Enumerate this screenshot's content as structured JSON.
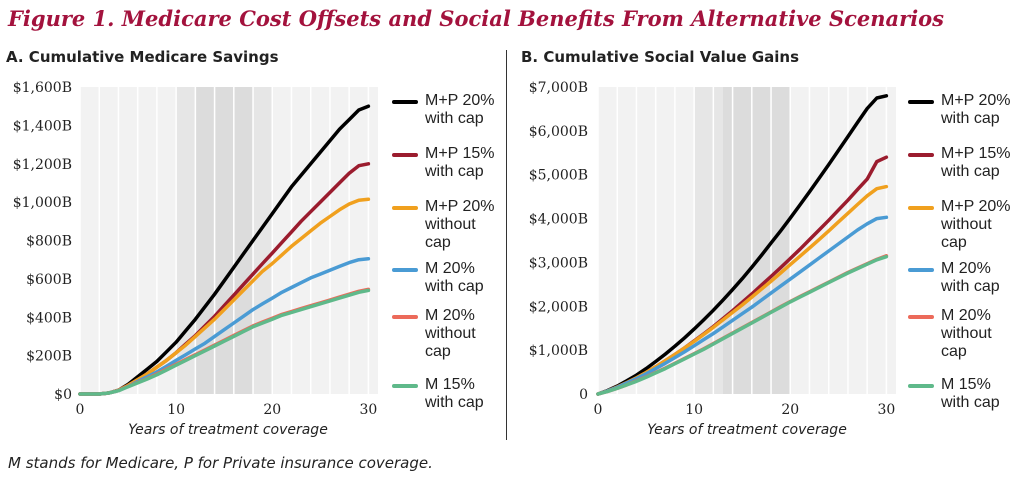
{
  "figure_title": "Figure 1. Medicare Cost Offsets and Social Benefits From Alternative Scenarios",
  "footnote": "M stands for Medicare, P for Private insurance coverage.",
  "legend_labels": [
    "M+P 20% with cap",
    "M+P 15% with cap",
    "M+P 20% without cap",
    "M 20% with cap",
    "M 20% without cap",
    "M 15% with cap"
  ],
  "series_colors": [
    "#000000",
    "#9b1c2e",
    "#f0a01e",
    "#4a9bd4",
    "#ec6a5a",
    "#5fb98a"
  ],
  "chart_data": [
    {
      "panel_title": "A. Cumulative Medicare Savings",
      "type": "line",
      "xlabel": "Years of treatment coverage",
      "xlim": [
        0,
        31
      ],
      "ylim": [
        0,
        1600
      ],
      "x_ticks": [
        0,
        10,
        20,
        30
      ],
      "y_ticks": [
        0,
        200,
        400,
        600,
        800,
        1000,
        1200,
        1400,
        1600
      ],
      "y_tick_labels": [
        "$0",
        "$200B",
        "$400B",
        "$600B",
        "$800B",
        "$1,000B",
        "$1,200B",
        "$1,400B",
        "$1,600B"
      ],
      "shaded_regions": [
        [
          10,
          20,
          "#e6e6e6"
        ],
        [
          12,
          18,
          "#dcdcdc"
        ]
      ],
      "grid": "vertical",
      "legend_position": "right",
      "x": [
        0,
        1,
        2,
        3,
        4,
        5,
        6,
        7,
        8,
        9,
        10,
        11,
        12,
        13,
        14,
        15,
        16,
        17,
        18,
        19,
        20,
        21,
        22,
        23,
        24,
        25,
        26,
        27,
        28,
        29,
        30
      ],
      "series": [
        {
          "name": "M+P 20% with cap",
          "values": [
            0,
            0,
            0,
            5,
            20,
            50,
            90,
            130,
            170,
            220,
            270,
            330,
            390,
            455,
            520,
            590,
            660,
            730,
            800,
            870,
            940,
            1010,
            1080,
            1140,
            1200,
            1260,
            1320,
            1380,
            1430,
            1480,
            1500
          ]
        },
        {
          "name": "M+P 15% with cap",
          "values": [
            0,
            0,
            0,
            5,
            20,
            45,
            75,
            105,
            140,
            175,
            215,
            260,
            305,
            355,
            405,
            460,
            515,
            570,
            625,
            680,
            735,
            790,
            845,
            900,
            950,
            1000,
            1050,
            1100,
            1150,
            1190,
            1200
          ]
        },
        {
          "name": "M+P 20% without cap",
          "values": [
            0,
            0,
            0,
            5,
            20,
            45,
            75,
            105,
            140,
            175,
            215,
            255,
            300,
            345,
            390,
            440,
            490,
            540,
            590,
            640,
            680,
            725,
            770,
            810,
            850,
            890,
            925,
            960,
            990,
            1010,
            1015
          ]
        },
        {
          "name": "M 20% with cap",
          "values": [
            0,
            0,
            0,
            5,
            18,
            40,
            65,
            90,
            115,
            145,
            175,
            205,
            235,
            265,
            300,
            335,
            370,
            405,
            440,
            470,
            500,
            530,
            555,
            580,
            605,
            625,
            645,
            665,
            685,
            700,
            705
          ]
        },
        {
          "name": "M 20% without cap",
          "values": [
            0,
            0,
            0,
            5,
            18,
            40,
            60,
            80,
            105,
            130,
            155,
            180,
            205,
            230,
            255,
            280,
            305,
            330,
            355,
            375,
            395,
            415,
            430,
            445,
            460,
            475,
            490,
            505,
            520,
            535,
            545
          ]
        },
        {
          "name": "M 15% with cap",
          "values": [
            0,
            0,
            0,
            5,
            17,
            38,
            58,
            78,
            100,
            125,
            150,
            175,
            200,
            225,
            250,
            275,
            300,
            325,
            350,
            370,
            390,
            410,
            425,
            440,
            455,
            470,
            485,
            500,
            515,
            530,
            540
          ]
        }
      ]
    },
    {
      "panel_title": "B. Cumulative Social Value Gains",
      "type": "line",
      "xlabel": "Years of treatment coverage",
      "xlim": [
        0,
        31
      ],
      "ylim": [
        0,
        7000
      ],
      "x_ticks": [
        0,
        10,
        20,
        30
      ],
      "y_ticks": [
        0,
        1000,
        2000,
        3000,
        4000,
        5000,
        6000,
        7000
      ],
      "y_tick_labels": [
        "0",
        "$1,000B",
        "$2,000B",
        "$3,000B",
        "$4,000B",
        "$5,000B",
        "$6,000B",
        "$7,000B"
      ],
      "shaded_regions": [
        [
          10,
          20,
          "#e6e6e6"
        ],
        [
          13,
          20,
          "#dcdcdc"
        ]
      ],
      "grid": "vertical",
      "legend_position": "right",
      "x": [
        0,
        1,
        2,
        3,
        4,
        5,
        6,
        7,
        8,
        9,
        10,
        11,
        12,
        13,
        14,
        15,
        16,
        17,
        18,
        19,
        20,
        21,
        22,
        23,
        24,
        25,
        26,
        27,
        28,
        29,
        30
      ],
      "series": [
        {
          "name": "M+P 20% with cap",
          "values": [
            0,
            80,
            180,
            300,
            430,
            580,
            740,
            910,
            1090,
            1280,
            1480,
            1690,
            1910,
            2140,
            2380,
            2630,
            2890,
            3160,
            3440,
            3720,
            4010,
            4310,
            4610,
            4920,
            5230,
            5550,
            5870,
            6190,
            6510,
            6750,
            6800
          ]
        },
        {
          "name": "M+P 15% with cap",
          "values": [
            0,
            70,
            160,
            260,
            370,
            490,
            620,
            760,
            900,
            1050,
            1210,
            1370,
            1540,
            1720,
            1900,
            2090,
            2280,
            2480,
            2680,
            2880,
            3090,
            3300,
            3520,
            3740,
            3960,
            4190,
            4420,
            4660,
            4900,
            5300,
            5400
          ]
        },
        {
          "name": "M+P 20% without cap",
          "values": [
            0,
            70,
            160,
            260,
            370,
            490,
            620,
            760,
            900,
            1050,
            1200,
            1360,
            1520,
            1690,
            1860,
            2030,
            2210,
            2390,
            2570,
            2760,
            2950,
            3140,
            3330,
            3520,
            3720,
            3920,
            4120,
            4320,
            4520,
            4680,
            4730
          ]
        },
        {
          "name": "M 20% with cap",
          "values": [
            0,
            70,
            150,
            250,
            350,
            460,
            580,
            700,
            830,
            960,
            1100,
            1240,
            1380,
            1530,
            1680,
            1830,
            1980,
            2140,
            2300,
            2460,
            2620,
            2780,
            2940,
            3100,
            3260,
            3420,
            3580,
            3740,
            3880,
            4000,
            4030
          ]
        },
        {
          "name": "M 20% without cap",
          "values": [
            0,
            60,
            130,
            210,
            300,
            390,
            490,
            590,
            700,
            810,
            920,
            1030,
            1150,
            1270,
            1390,
            1510,
            1630,
            1750,
            1870,
            1990,
            2110,
            2220,
            2330,
            2440,
            2550,
            2660,
            2770,
            2870,
            2970,
            3070,
            3150
          ]
        },
        {
          "name": "M 15% with cap",
          "values": [
            0,
            60,
            130,
            210,
            290,
            380,
            480,
            580,
            690,
            800,
            910,
            1020,
            1140,
            1260,
            1380,
            1500,
            1620,
            1740,
            1860,
            1980,
            2100,
            2210,
            2320,
            2430,
            2540,
            2650,
            2760,
            2860,
            2960,
            3060,
            3130
          ]
        }
      ]
    }
  ]
}
